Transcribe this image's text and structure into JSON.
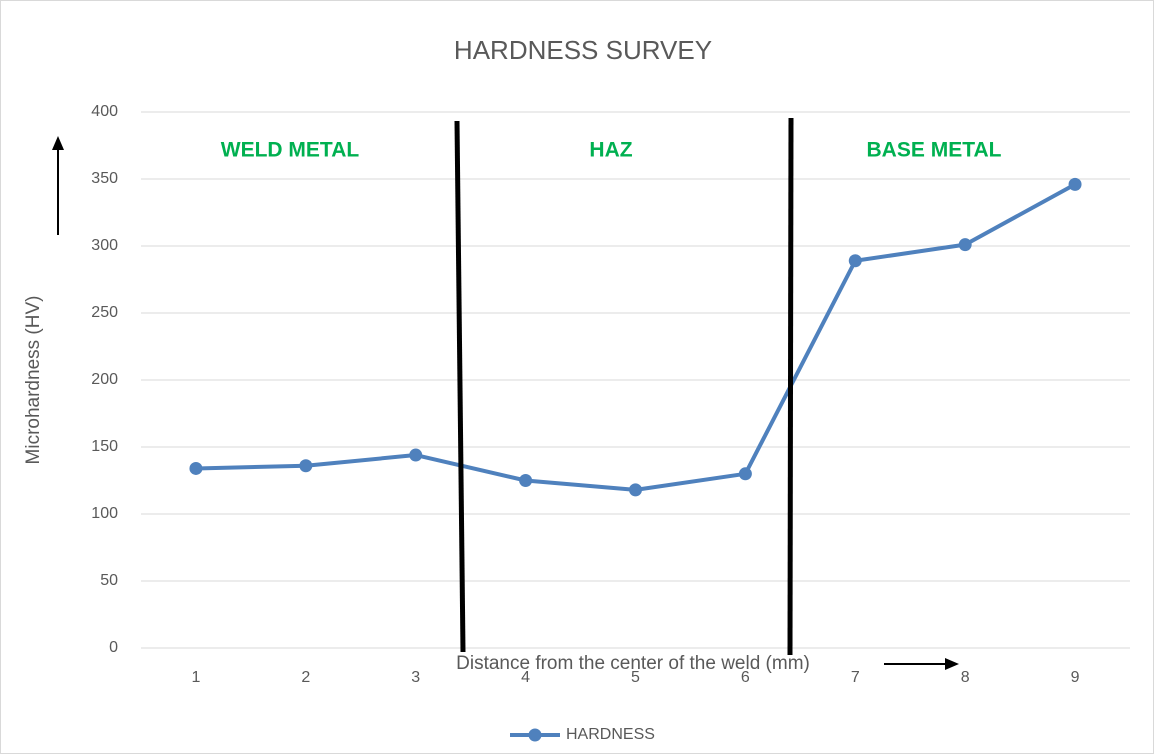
{
  "chart_data": {
    "type": "line",
    "title": "HARDNESS SURVEY",
    "x_label": "Distance from the center of the weld (mm)",
    "y_label": "Microhardness (HV)",
    "categories": [
      "1",
      "2",
      "3",
      "4",
      "5",
      "6",
      "7",
      "8",
      "9"
    ],
    "series": [
      {
        "name": "HARDNESS",
        "color": "#4f81bd",
        "values": [
          134,
          136,
          144,
          125,
          118,
          130,
          289,
          301,
          346
        ]
      }
    ],
    "annotations": [
      "WELD METAL",
      "HAZ",
      "BASE METAL"
    ],
    "annotation_color": "#00b050",
    "ylim": [
      0,
      400
    ],
    "yticks": [
      0,
      50,
      100,
      150,
      200,
      250,
      300,
      350,
      400
    ],
    "grid": true,
    "legend": "bottom"
  }
}
